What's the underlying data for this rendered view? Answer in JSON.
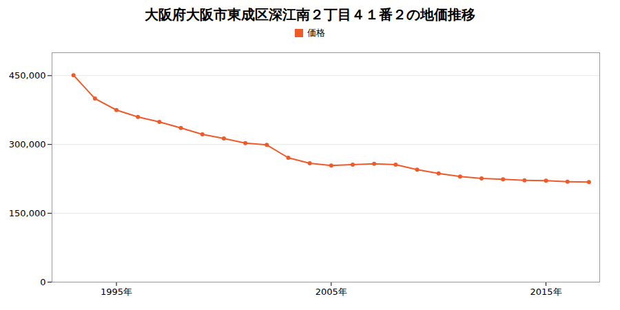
{
  "chart_data": {
    "type": "line",
    "title": "大阪府大阪市東成区深江南２丁目４１番２の地価推移",
    "x": [
      1993,
      1994,
      1995,
      1996,
      1997,
      1998,
      1999,
      2000,
      2001,
      2002,
      2003,
      2004,
      2005,
      2006,
      2007,
      2008,
      2009,
      2010,
      2011,
      2012,
      2013,
      2014,
      2015,
      2016,
      2017
    ],
    "series": [
      {
        "name": "価格",
        "color": "#f05a28",
        "marker": "circle",
        "values": [
          451000,
          400000,
          375000,
          360000,
          349000,
          336000,
          322000,
          313000,
          303000,
          299000,
          271000,
          259000,
          254000,
          256000,
          258000,
          256000,
          245000,
          237000,
          230000,
          226000,
          224000,
          222000,
          221000,
          219000,
          218000
        ]
      }
    ],
    "xlim": [
      1992,
      2017.5
    ],
    "xticks": [
      {
        "value": 1995,
        "label": "1995年"
      },
      {
        "value": 2005,
        "label": "2005年"
      },
      {
        "value": 2015,
        "label": "2015年"
      }
    ],
    "ylim": [
      0,
      500000
    ],
    "yticks": [
      0,
      {
        "value": 150000,
        "label": "150,000"
      },
      {
        "value": 300000,
        "label": "300,000"
      },
      {
        "value": 450000,
        "label": "450,000"
      }
    ],
    "grid": "y",
    "legend": "top"
  }
}
